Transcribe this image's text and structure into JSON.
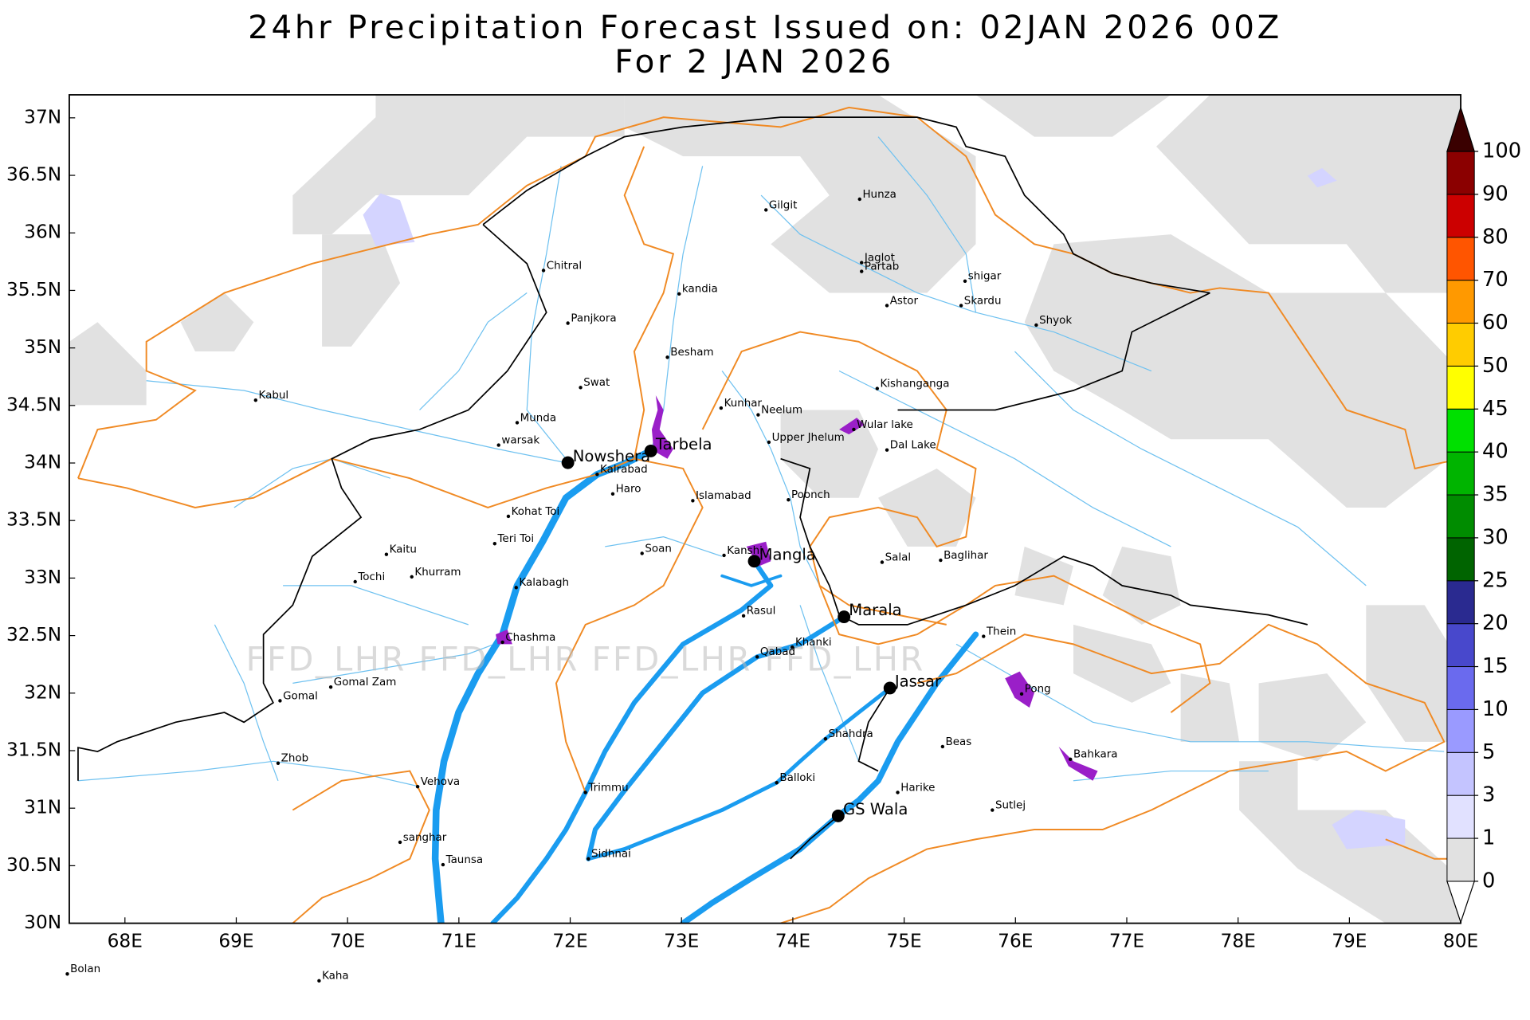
{
  "chart_data": {
    "type": "map",
    "title": "24hr Precipitation Forecast Issued on:  02JAN 2026 00Z",
    "subtitle": "For 2 JAN 2026",
    "xlim": [
      67.5,
      80
    ],
    "ylim": [
      30,
      37.2
    ],
    "xticks": [
      {
        "value": 68,
        "label": "68E"
      },
      {
        "value": 69,
        "label": "69E"
      },
      {
        "value": 70,
        "label": "70E"
      },
      {
        "value": 71,
        "label": "71E"
      },
      {
        "value": 72,
        "label": "72E"
      },
      {
        "value": 73,
        "label": "73E"
      },
      {
        "value": 74,
        "label": "74E"
      },
      {
        "value": 75,
        "label": "75E"
      },
      {
        "value": 76,
        "label": "76E"
      },
      {
        "value": 77,
        "label": "77E"
      },
      {
        "value": 78,
        "label": "78E"
      },
      {
        "value": 79,
        "label": "79E"
      },
      {
        "value": 80,
        "label": "80E"
      }
    ],
    "yticks": [
      {
        "value": 30,
        "label": "30N"
      },
      {
        "value": 30.5,
        "label": "30.5N"
      },
      {
        "value": 31,
        "label": "31N"
      },
      {
        "value": 31.5,
        "label": "31.5N"
      },
      {
        "value": 32,
        "label": "32N"
      },
      {
        "value": 32.5,
        "label": "32.5N"
      },
      {
        "value": 33,
        "label": "33N"
      },
      {
        "value": 33.5,
        "label": "33.5N"
      },
      {
        "value": 34,
        "label": "34N"
      },
      {
        "value": 34.5,
        "label": "34.5N"
      },
      {
        "value": 35,
        "label": "35N"
      },
      {
        "value": 35.5,
        "label": "35.5N"
      },
      {
        "value": 36,
        "label": "36N"
      },
      {
        "value": 36.5,
        "label": "36.5N"
      },
      {
        "value": 37,
        "label": "37N"
      }
    ],
    "colorbar": {
      "levels": [
        0,
        1,
        3,
        5,
        10,
        15,
        20,
        25,
        30,
        35,
        40,
        45,
        50,
        60,
        70,
        80,
        90,
        100
      ],
      "colors": [
        "#ffffff",
        "#e1e1e1",
        "#e1e1ff",
        "#c4c4ff",
        "#9a9aff",
        "#6a6aee",
        "#4848cc",
        "#2a2a90",
        "#006400",
        "#008c00",
        "#00b400",
        "#00e000",
        "#ffff00",
        "#ffcc00",
        "#ff9900",
        "#ff5500",
        "#cc0000",
        "#8b0000",
        "#3a0000"
      ]
    },
    "watermark": "FFD_LHR FFD_LHR FFD_LHR FFD_LHR",
    "places": [
      "Gilgit",
      "Hunza",
      "Jaglot",
      "Partab",
      "shigar",
      "Skardu",
      "Astor",
      "Shyok",
      "Chitral",
      "kandia",
      "Panjkora",
      "Besham",
      "Swat",
      "Kabul",
      "Kishanganga",
      "Kunhar",
      "Neelum",
      "Munda",
      "Wular lake",
      "Upper Jhelum",
      "warsak",
      "Dal Lake",
      "Tarbela",
      "Nowshera",
      "Kalrabad",
      "Haro",
      "Islamabad",
      "Poonch",
      "Kohat Toi",
      "Teri Toi",
      "Soan",
      "Kanshi",
      "Mangla",
      "Kaitu",
      "Salal",
      "Baglihar",
      "Khurram",
      "Tochi",
      "Kalabagh",
      "Rasul",
      "Marala",
      "Thein",
      "Chashma",
      "Khanki",
      "Qabad",
      "Gomal",
      "Gomal Zam",
      "Jassar",
      "Pong",
      "Shahdra",
      "Beas",
      "Bahkara",
      "Zhob",
      "Balloki",
      "Vehova",
      "Harike",
      "Trimmu",
      "Sutlej",
      "GS Wala",
      "sanghar",
      "Sidhnai",
      "Taunsa",
      "Bolan",
      "Kaha"
    ]
  }
}
